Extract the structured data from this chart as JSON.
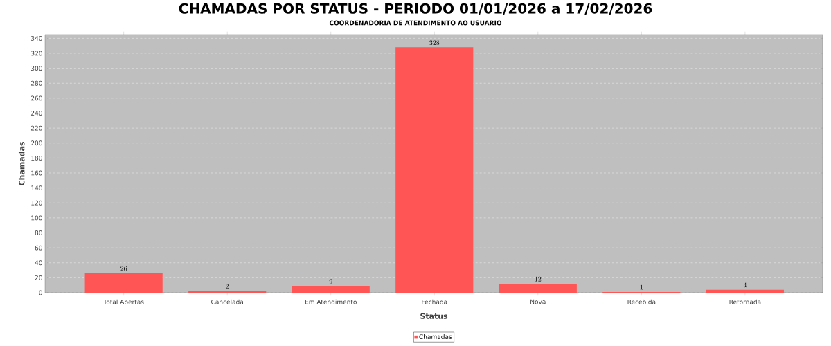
{
  "chart_data": {
    "type": "bar",
    "title": "CHAMADAS POR STATUS - PERIODO 01/01/2026 a 17/02/2026",
    "subtitle": "COORDENADORIA DE ATENDIMENTO AO USUARIO",
    "xlabel": "Status",
    "ylabel": "Chamadas",
    "categories": [
      "Total Abertas",
      "Cancelada",
      "Em Atendimento",
      "Fechada",
      "Nova",
      "Recebida",
      "Retornada"
    ],
    "series": [
      {
        "name": "Chamadas",
        "color": "#ff5555",
        "values": [
          26,
          2,
          9,
          328,
          12,
          1,
          4
        ]
      }
    ],
    "ylim": [
      0,
      345
    ],
    "yticks": [
      0,
      20,
      40,
      60,
      80,
      100,
      120,
      140,
      160,
      180,
      200,
      220,
      240,
      260,
      280,
      300,
      320,
      340
    ],
    "grid": "y",
    "legend": "bottom",
    "data_labels": true
  }
}
